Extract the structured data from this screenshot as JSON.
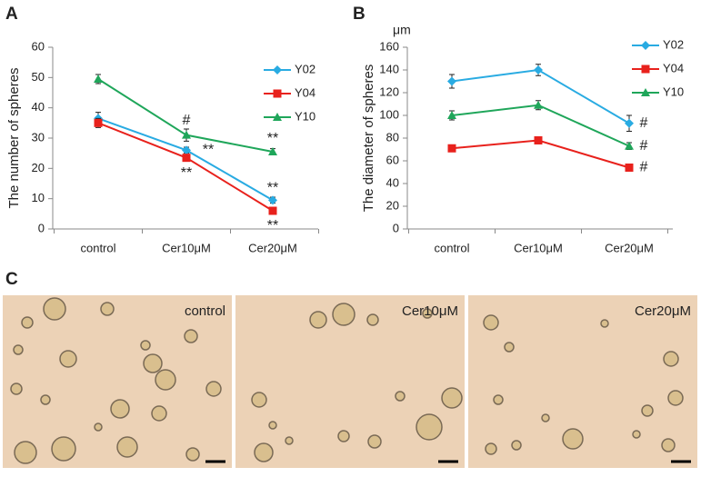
{
  "chart_data": [
    {
      "type": "line",
      "panel": "A",
      "ylabel": "The number of spheres",
      "categories": [
        "control",
        "Cer10μM",
        "Cer20μM"
      ],
      "series": [
        {
          "name": "Y02",
          "color": "#29abe2",
          "marker": "diamond",
          "values": [
            36.5,
            26,
            9.5
          ],
          "errors": [
            2,
            1,
            1
          ]
        },
        {
          "name": "Y04",
          "color": "#e8211c",
          "marker": "square",
          "values": [
            35,
            23.5,
            6
          ],
          "errors": [
            1.5,
            1,
            0.5
          ]
        },
        {
          "name": "Y10",
          "color": "#1fa65a",
          "marker": "triangle",
          "values": [
            49.5,
            31,
            25.5
          ],
          "errors": [
            1.5,
            2,
            1
          ]
        }
      ],
      "ylim": [
        0,
        60
      ],
      "yticks": [
        0,
        10,
        20,
        30,
        40,
        50,
        60
      ],
      "annotations": [
        "#",
        "**",
        "**",
        "**",
        "**",
        "**"
      ]
    },
    {
      "type": "line",
      "panel": "B",
      "ylabel": "The diameter of spheres",
      "unit": "μm",
      "categories": [
        "control",
        "Cer10μM",
        "Cer20μM"
      ],
      "series": [
        {
          "name": "Y02",
          "color": "#29abe2",
          "marker": "diamond",
          "values": [
            130,
            140,
            93
          ],
          "errors": [
            6,
            5,
            7
          ]
        },
        {
          "name": "Y04",
          "color": "#e8211c",
          "marker": "square",
          "values": [
            71,
            78,
            54
          ],
          "errors": [
            2,
            2,
            3
          ]
        },
        {
          "name": "Y10",
          "color": "#1fa65a",
          "marker": "triangle",
          "values": [
            100,
            109,
            73
          ],
          "errors": [
            4,
            4,
            3
          ]
        }
      ],
      "ylim": [
        0,
        160
      ],
      "yticks": [
        0,
        20,
        40,
        60,
        80,
        100,
        120,
        140,
        160
      ],
      "annotations": [
        "#",
        "#",
        "#"
      ]
    }
  ],
  "panel_c": {
    "label": "C",
    "images": [
      {
        "label": "control"
      },
      {
        "label": "Cer10μM"
      },
      {
        "label": "Cer20μM"
      }
    ]
  }
}
